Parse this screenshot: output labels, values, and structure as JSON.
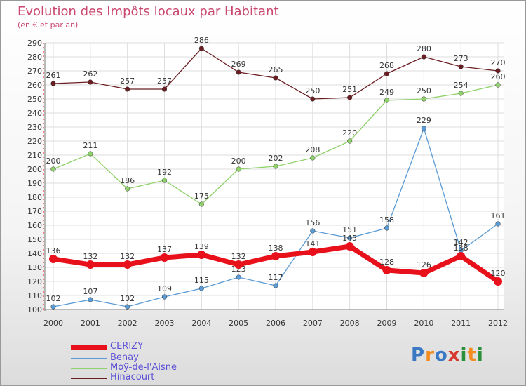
{
  "header": {
    "title": "Evolution des Impôts locaux par Habitant",
    "subtitle": "(en € et par an)"
  },
  "colors": {
    "CERIZY": "#e8101a",
    "Benay": "#5b9bd5",
    "Moÿ-de-l'Aisne": "#8fd16a",
    "Hinacourt": "#6b1e22"
  },
  "logo": {
    "text": "Proxiti"
  },
  "chart_data": {
    "type": "line",
    "title": "Evolution des Impôts locaux par Habitant",
    "subtitle": "(en € et par an)",
    "x": [
      "2000",
      "2001",
      "2002",
      "2003",
      "2004",
      "2005",
      "2006",
      "2007",
      "2008",
      "2009",
      "2010",
      "2011",
      "2012"
    ],
    "ylim": [
      100,
      290
    ],
    "yticks": [
      100,
      110,
      120,
      130,
      140,
      150,
      160,
      170,
      180,
      190,
      200,
      210,
      220,
      230,
      240,
      250,
      260,
      270,
      280,
      290
    ],
    "grid": true,
    "legend_position": "bottom-left",
    "series": [
      {
        "name": "CERIZY",
        "values": [
          136,
          132,
          132,
          137,
          139,
          132,
          138,
          141,
          145,
          128,
          126,
          138,
          120
        ]
      },
      {
        "name": "Benay",
        "values": [
          102,
          107,
          102,
          109,
          115,
          123,
          117,
          156,
          151,
          158,
          229,
          142,
          161
        ]
      },
      {
        "name": "Moÿ-de-l'Aisne",
        "values": [
          200,
          211,
          186,
          192,
          175,
          200,
          202,
          208,
          220,
          249,
          250,
          254,
          260
        ]
      },
      {
        "name": "Hinacourt",
        "values": [
          261,
          262,
          257,
          257,
          286,
          269,
          265,
          250,
          251,
          268,
          280,
          273,
          270
        ]
      }
    ]
  }
}
